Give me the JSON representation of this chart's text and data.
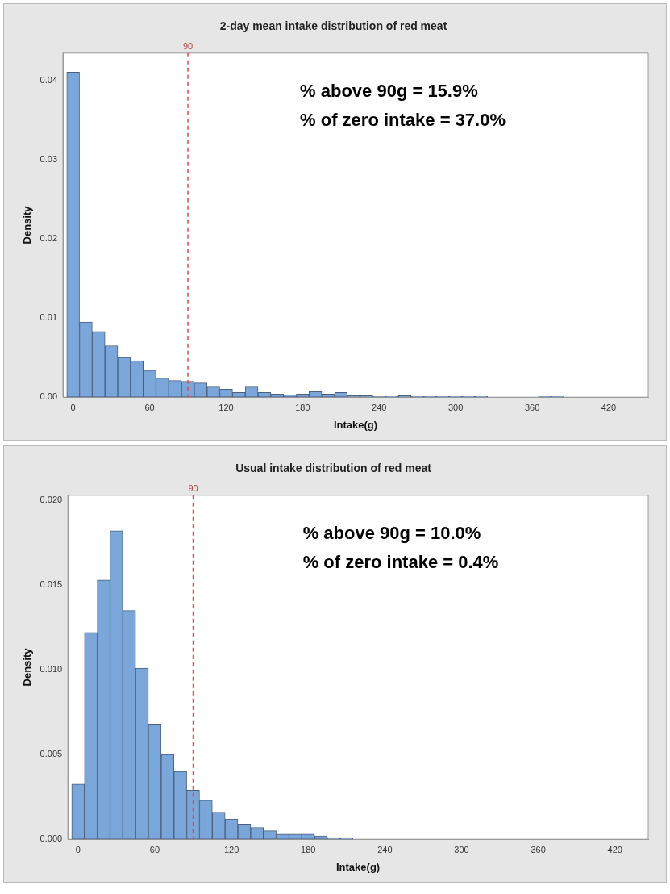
{
  "chart_data": [
    {
      "type": "histogram",
      "title": "2-day mean intake distribution of red meat",
      "xlabel": "Intake(g)",
      "ylabel": "Density",
      "color": "#7ba6da",
      "bins": [
        -5,
        5,
        15,
        25,
        35,
        45,
        55,
        65,
        75,
        85,
        95,
        105,
        115,
        125,
        135,
        145,
        155,
        165,
        175,
        185,
        195,
        205,
        215,
        225,
        235,
        245,
        255,
        265,
        275,
        285,
        295,
        305,
        315,
        325,
        335,
        345,
        355,
        365,
        375,
        385,
        395,
        405,
        415
      ],
      "values": [
        0.0411,
        0.0095,
        0.0083,
        0.0065,
        0.005,
        0.0046,
        0.0034,
        0.0024,
        0.0021,
        0.002,
        0.0018,
        0.0013,
        0.001,
        0.0006,
        0.0013,
        0.0006,
        0.0004,
        0.0003,
        0.0004,
        0.0007,
        0.0004,
        0.0006,
        0.0002,
        0.0002,
        0.0001,
        0.0001,
        0.0002,
        0.0001,
        0.0001,
        0.0001,
        0.0001,
        0.0001,
        0.0001,
        0,
        0,
        0,
        0,
        0.0001,
        0.0001,
        0,
        0,
        0
      ],
      "xlim": [
        -8,
        451
      ],
      "xticks": [
        0,
        60,
        120,
        180,
        240,
        300,
        360,
        420
      ],
      "ylim": [
        0,
        0.0435
      ],
      "yticks": [
        {
          "value": 0,
          "label": "0.00"
        },
        {
          "value": 0.01,
          "label": "0.01"
        },
        {
          "value": 0.02,
          "label": "0.02"
        },
        {
          "value": 0.03,
          "label": "0.03"
        },
        {
          "value": 0.04,
          "label": "0.04"
        }
      ],
      "ref_lines": [
        {
          "axis": "x",
          "value": 90,
          "label": "90",
          "color": "#e8474a",
          "line_style": "dashed"
        }
      ],
      "annotations": [
        "% above 90g = 15.9%",
        "% of zero intake = 37.0%"
      ],
      "grid": false,
      "legend": false
    },
    {
      "type": "histogram",
      "title": "Usual intake distribution of red meat",
      "xlabel": "Intake(g)",
      "ylabel": "Density",
      "color": "#7ba6da",
      "bins": [
        -5,
        5,
        15,
        25,
        35,
        45,
        55,
        65,
        75,
        85,
        95,
        105,
        115,
        125,
        135,
        145,
        155,
        165,
        175,
        185,
        195,
        205,
        215,
        225,
        235,
        245
      ],
      "values": [
        0.00325,
        0.0122,
        0.0153,
        0.0182,
        0.0135,
        0.0101,
        0.0068,
        0.005,
        0.004,
        0.0029,
        0.0023,
        0.0016,
        0.0012,
        0.0009,
        0.0007,
        0.0005,
        0.0003,
        0.0003,
        0.0003,
        0.0002,
        0.0001,
        0.0001,
        0,
        0,
        0
      ],
      "xlim": [
        -8,
        446
      ],
      "xticks": [
        0,
        60,
        120,
        180,
        240,
        300,
        360,
        420
      ],
      "ylim": [
        0,
        0.0203
      ],
      "yticks": [
        {
          "value": 0,
          "label": "0.000"
        },
        {
          "value": 0.005,
          "label": "0.005"
        },
        {
          "value": 0.01,
          "label": "0.010"
        },
        {
          "value": 0.015,
          "label": "0.015"
        },
        {
          "value": 0.02,
          "label": "0.020"
        }
      ],
      "ref_lines": [
        {
          "axis": "x",
          "value": 90,
          "label": "90",
          "color": "#e8474a",
          "line_style": "dashed"
        }
      ],
      "annotations": [
        "% above 90g = 10.0%",
        "% of zero intake = 0.4%"
      ],
      "grid": false,
      "legend": false
    }
  ]
}
